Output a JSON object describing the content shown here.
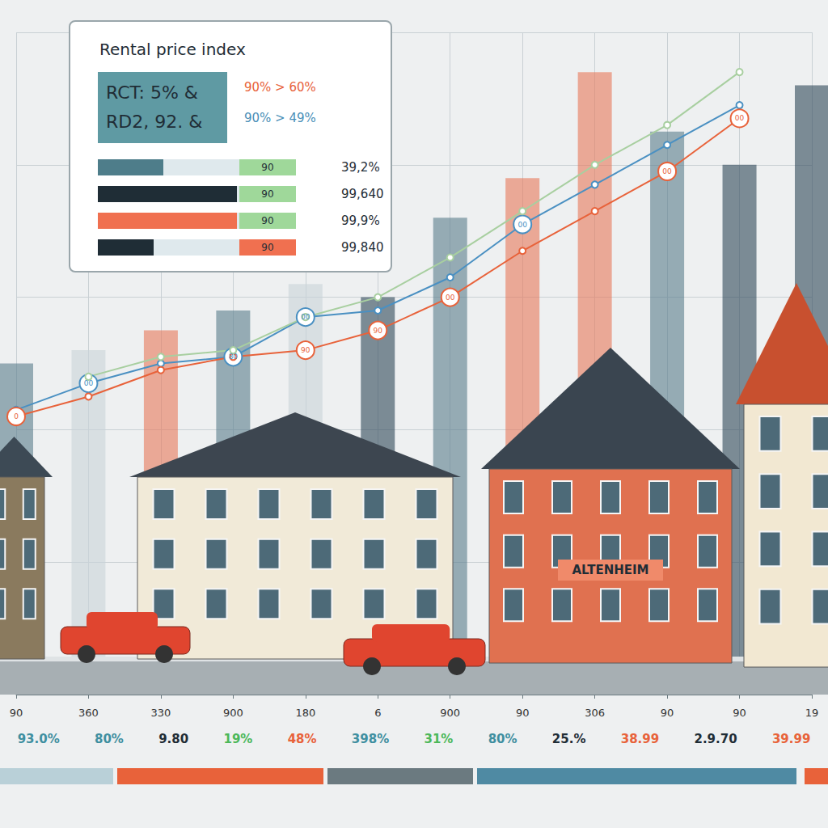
{
  "chart_data": {
    "type": "line",
    "categories": [
      "90",
      "360",
      "330",
      "900",
      "180",
      "6",
      "900",
      "90",
      "306",
      "90",
      "90",
      "19"
    ],
    "ylim": [
      0,
      100
    ],
    "yticks": [
      0,
      20,
      40,
      60,
      80,
      100
    ],
    "grid": true,
    "tick_labels": "x",
    "series": [
      {
        "type": "bar",
        "colors": [
          "#5a7d8c",
          "#c9d3d8",
          "#e8785a",
          "#5a7d8c",
          "#c9d3d8",
          "#2f4858",
          "#5a7d8c",
          "#e8785a",
          "#e8785a",
          "#5a7d8c",
          "#2f4858",
          "#2f4858"
        ],
        "values": [
          50,
          52,
          55,
          58,
          62,
          60,
          72,
          78,
          94,
          85,
          80,
          92
        ]
      },
      {
        "type": "line",
        "color": "#4a90c2",
        "marker": "circle",
        "values": [
          43,
          47,
          50,
          51,
          57,
          58,
          63,
          71,
          77,
          83,
          89,
          null
        ]
      },
      {
        "type": "line",
        "color": "#e8623a",
        "marker": "circle",
        "values": [
          42,
          45,
          49,
          51,
          52,
          55,
          60,
          67,
          73,
          79,
          87,
          null
        ]
      },
      {
        "type": "line",
        "color": "#a8cfa0",
        "marker": "circle",
        "values": [
          null,
          48,
          51,
          52,
          57,
          60,
          66,
          73,
          80,
          86,
          94,
          null
        ]
      }
    ],
    "annotations": [
      {
        "series": 1,
        "point": 1,
        "text": "00"
      },
      {
        "series": 1,
        "point": 3,
        "text": "80"
      },
      {
        "series": 1,
        "point": 4,
        "text": "00"
      },
      {
        "series": 1,
        "point": 7,
        "text": "00"
      },
      {
        "series": 2,
        "point": 0,
        "text": "0"
      },
      {
        "series": 2,
        "point": 4,
        "text": "90"
      },
      {
        "series": 2,
        "point": 5,
        "text": "90"
      },
      {
        "series": 2,
        "point": 6,
        "text": "00"
      },
      {
        "series": 2,
        "point": 9,
        "text": "00"
      },
      {
        "series": 2,
        "point": 10,
        "text": "00"
      }
    ]
  },
  "panel": {
    "title": "Rental price index",
    "stats": [
      "RCT: 5% &",
      "RD2, 92. &"
    ],
    "changes": [
      "90% > 60%",
      "90% > 49%"
    ],
    "rows": [
      {
        "label": "90",
        "fill": 0.33,
        "color": "#4e7d8a",
        "label_color": "#9fd89a",
        "text": "39,2%"
      },
      {
        "label": "90",
        "fill": 0.7,
        "color": "#1f2d36",
        "label_color": "#9fd89a",
        "text": "99,640"
      },
      {
        "label": "90",
        "fill": 0.7,
        "color": "#f07050",
        "label_color": "#9fd89a",
        "text": "99,9%"
      },
      {
        "label": "90",
        "fill": 0.28,
        "color": "#1f2d36",
        "label_color": "#f07050",
        "text": "99,840"
      }
    ]
  },
  "footer": {
    "labels": [
      "93.0%",
      "80%",
      "9.80",
      "19%",
      "48%",
      "398%",
      "31%",
      "80%",
      "25.%",
      "38.99",
      "2.9.70",
      "39.99"
    ],
    "colors": [
      "#3f8fa0",
      "#3f8fa0",
      "#1f2d36",
      "#4cb85a",
      "#e8623a",
      "#3f8fa0",
      "#4cb85a",
      "#3f8fa0",
      "#1f2d36",
      "#e8623a",
      "#1f2d36",
      "#e8623a"
    ]
  },
  "scene": {
    "sign": "ALTENHEIM"
  }
}
